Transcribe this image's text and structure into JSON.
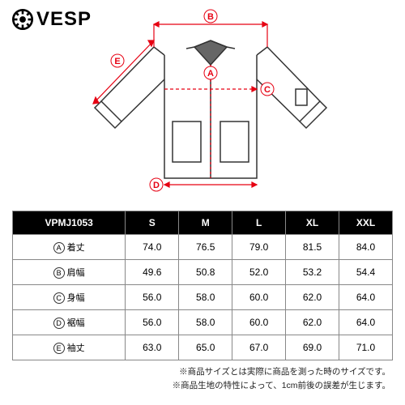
{
  "brand": {
    "name": "VESP"
  },
  "diagram": {
    "accent_color": "#e60012",
    "stroke_color": "#333333",
    "labels": [
      "A",
      "B",
      "C",
      "D",
      "E"
    ]
  },
  "table": {
    "model": "VPMJ1053",
    "sizes": [
      "S",
      "M",
      "L",
      "XL",
      "XXL"
    ],
    "rows": [
      {
        "badge": "A",
        "label": "着丈",
        "vals": [
          "74.0",
          "76.5",
          "79.0",
          "81.5",
          "84.0"
        ]
      },
      {
        "badge": "B",
        "label": "肩幅",
        "vals": [
          "49.6",
          "50.8",
          "52.0",
          "53.2",
          "54.4"
        ]
      },
      {
        "badge": "C",
        "label": "身幅",
        "vals": [
          "56.0",
          "58.0",
          "60.0",
          "62.0",
          "64.0"
        ]
      },
      {
        "badge": "D",
        "label": "裾幅",
        "vals": [
          "56.0",
          "58.0",
          "60.0",
          "62.0",
          "64.0"
        ]
      },
      {
        "badge": "E",
        "label": "袖丈",
        "vals": [
          "63.0",
          "65.0",
          "67.0",
          "69.0",
          "71.0"
        ]
      }
    ]
  },
  "notes": {
    "line1": "※商品サイズとは実際に商品を測った時のサイズです。",
    "line2": "※商品生地の特性によって、1cm前後の誤差が生じます。"
  }
}
